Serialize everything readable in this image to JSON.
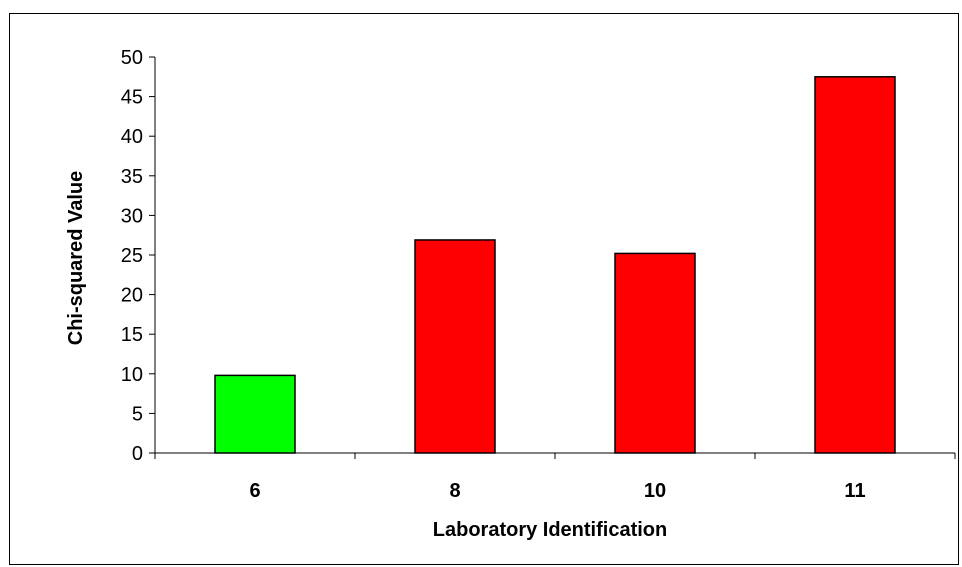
{
  "chart_data": {
    "type": "bar",
    "title": "",
    "xlabel": "Laboratory Identification",
    "ylabel": "Chi-squared Value",
    "categories": [
      "6",
      "8",
      "10",
      "11"
    ],
    "values": [
      9.8,
      26.9,
      25.2,
      47.5
    ],
    "bar_colors": [
      "#00ff00",
      "#ff0000",
      "#ff0000",
      "#ff0000"
    ],
    "ylim": [
      0,
      50
    ],
    "yticks": [
      "0",
      "5",
      "10",
      "15",
      "20",
      "25",
      "30",
      "35",
      "40",
      "45",
      "50"
    ],
    "grid": false,
    "legend": "none"
  }
}
